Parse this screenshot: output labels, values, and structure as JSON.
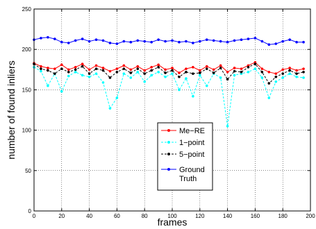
{
  "chart_data": {
    "type": "line",
    "title": "",
    "xlabel": "frames",
    "ylabel": "number of found inliers",
    "xlim": [
      0,
      200
    ],
    "ylim": [
      0,
      250
    ],
    "x_ticks": [
      "0",
      "20",
      "40",
      "60",
      "80",
      "100",
      "120",
      "140",
      "160",
      "180",
      "200"
    ],
    "y_ticks": [
      "0",
      "50",
      "100",
      "150",
      "200",
      "250"
    ],
    "grid": true,
    "legend_position": "bottom-center",
    "series": [
      {
        "name": "Me−RE",
        "color": "#ff0000",
        "style": "solid",
        "marker": "dot",
        "x": [
          0,
          5,
          10,
          15,
          20,
          25,
          30,
          35,
          40,
          45,
          50,
          55,
          60,
          65,
          70,
          75,
          80,
          85,
          90,
          95,
          100,
          105,
          110,
          115,
          120,
          125,
          130,
          135,
          140,
          145,
          150,
          155,
          160,
          165,
          170,
          175,
          180,
          185,
          190,
          195
        ],
        "values": [
          183,
          179,
          177,
          176,
          181,
          175,
          178,
          182,
          175,
          180,
          177,
          173,
          176,
          180,
          175,
          179,
          174,
          178,
          181,
          175,
          177,
          171,
          176,
          178,
          174,
          179,
          175,
          180,
          172,
          177,
          176,
          180,
          184,
          176,
          172,
          170,
          175,
          177,
          174,
          176
        ]
      },
      {
        "name": "1−point",
        "color": "#00ffff",
        "style": "dashed",
        "marker": "dot",
        "x": [
          0,
          5,
          10,
          15,
          20,
          25,
          30,
          35,
          40,
          45,
          50,
          55,
          60,
          65,
          70,
          75,
          80,
          85,
          90,
          95,
          100,
          105,
          110,
          115,
          120,
          125,
          130,
          135,
          140,
          145,
          150,
          155,
          160,
          165,
          170,
          175,
          180,
          185,
          190,
          195
        ],
        "values": [
          178,
          173,
          155,
          170,
          148,
          167,
          172,
          168,
          166,
          170,
          159,
          127,
          140,
          170,
          165,
          172,
          160,
          168,
          172,
          166,
          170,
          150,
          164,
          142,
          168,
          155,
          170,
          165,
          105,
          168,
          170,
          172,
          176,
          165,
          140,
          160,
          165,
          170,
          166,
          165
        ]
      },
      {
        "name": "5−point",
        "color": "#000000",
        "style": "dashed",
        "marker": "dot",
        "x": [
          0,
          5,
          10,
          15,
          20,
          25,
          30,
          35,
          40,
          45,
          50,
          55,
          60,
          65,
          70,
          75,
          80,
          85,
          90,
          95,
          100,
          105,
          110,
          115,
          120,
          125,
          130,
          135,
          140,
          145,
          150,
          155,
          160,
          165,
          170,
          175,
          180,
          185,
          190,
          195
        ],
        "values": [
          182,
          176,
          174,
          170,
          176,
          172,
          175,
          179,
          170,
          176,
          174,
          165,
          172,
          176,
          171,
          176,
          170,
          174,
          178,
          171,
          174,
          166,
          172,
          170,
          171,
          176,
          171,
          177,
          163,
          173,
          172,
          178,
          182,
          172,
          158,
          166,
          170,
          174,
          170,
          172
        ]
      },
      {
        "name": "Ground Truth",
        "color": "#0000ff",
        "style": "solid",
        "marker": "dot",
        "x": [
          0,
          5,
          10,
          15,
          20,
          25,
          30,
          35,
          40,
          45,
          50,
          55,
          60,
          65,
          70,
          75,
          80,
          85,
          90,
          95,
          100,
          105,
          110,
          115,
          120,
          125,
          130,
          135,
          140,
          145,
          150,
          155,
          160,
          165,
          170,
          175,
          180,
          185,
          190,
          195
        ],
        "values": [
          212,
          214,
          215,
          213,
          209,
          208,
          211,
          213,
          210,
          212,
          211,
          208,
          207,
          210,
          209,
          211,
          210,
          209,
          212,
          210,
          211,
          209,
          210,
          208,
          210,
          212,
          211,
          210,
          209,
          211,
          212,
          213,
          214,
          210,
          206,
          207,
          210,
          212,
          209,
          209
        ]
      }
    ],
    "legend": [
      {
        "label": "Me−RE",
        "series": 0
      },
      {
        "label": "1−point",
        "series": 1
      },
      {
        "label": "5−point",
        "series": 2
      },
      {
        "label": "Ground",
        "label2": "Truth",
        "series": 3
      }
    ]
  }
}
